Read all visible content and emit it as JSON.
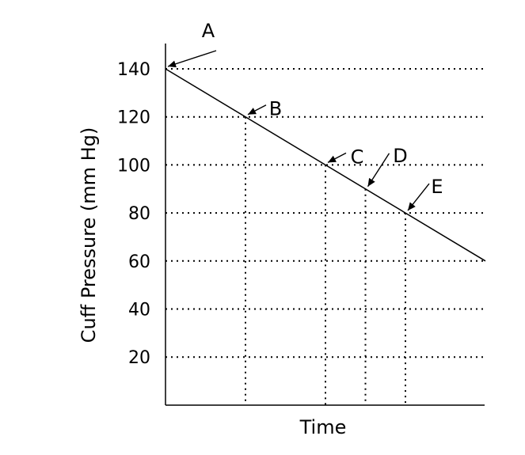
{
  "chart_data": {
    "type": "line",
    "title": "",
    "xlabel": "Time",
    "ylabel": "Cuff Pressure (mm Hg)",
    "ylim": [
      0,
      140
    ],
    "yticks": [
      20,
      40,
      60,
      80,
      100,
      120,
      140
    ],
    "grid": true,
    "series": [
      {
        "points": [
          {
            "x": 0,
            "y": 140
          },
          {
            "x": 4,
            "y": 60
          }
        ]
      }
    ],
    "annotations": [
      {
        "label": "A",
        "x": 0,
        "y": 140
      },
      {
        "label": "B",
        "x": 1,
        "y": 120
      },
      {
        "label": "C",
        "x": 2,
        "y": 100
      },
      {
        "label": "D",
        "x": 2.5,
        "y": 90
      },
      {
        "label": "E",
        "x": 3,
        "y": 80
      }
    ]
  }
}
